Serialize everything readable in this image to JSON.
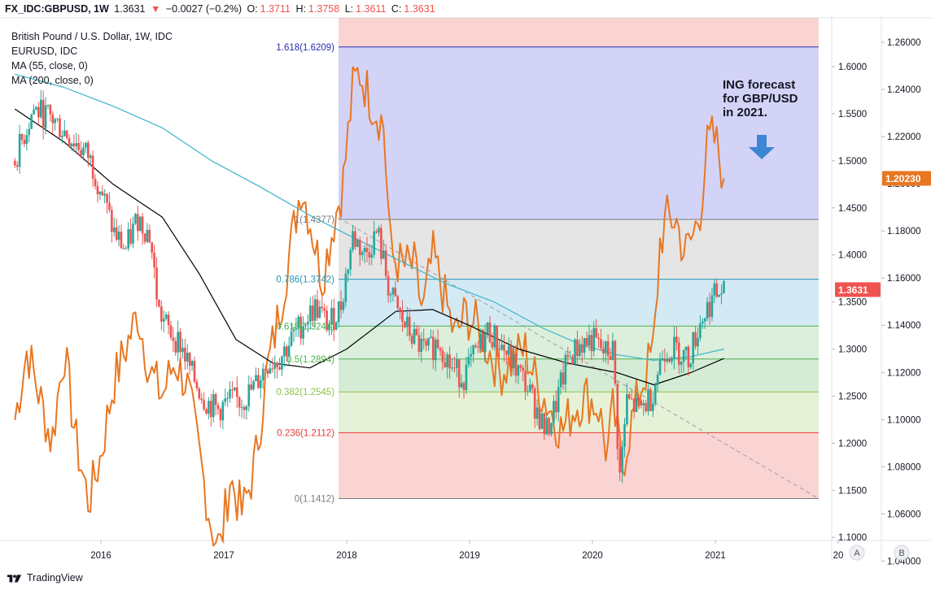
{
  "header": {
    "symbol": "FX_IDC:GBPUSD, 1W",
    "last": "1.3631",
    "change_arrow": "▼",
    "change": "−0.0027 (−0.2%)",
    "o_label": "O:",
    "o_value": "1.3711",
    "h_label": "H:",
    "h_value": "1.3758",
    "l_label": "L:",
    "l_value": "1.3611",
    "c_label": "C:",
    "c_value": "1.3631"
  },
  "legend": {
    "main": "British Pound / U.S. Dollar, 1W, IDC",
    "overlay": "EURUSD, IDC",
    "ma55": "MA (55, close, 0)",
    "ma200": "MA (200, close, 0)"
  },
  "annotation": {
    "line1": "ING forecast",
    "line2": "for GBP/USD",
    "line3": "in 2021."
  },
  "footer": {
    "brand": "TradingView"
  },
  "colors": {
    "up": "#26a69a",
    "down": "#ef5350",
    "overlay": "#e87722",
    "ma55": "#000000",
    "ma200": "#3bb7c9",
    "arrow": "#3d86d4",
    "price_badge": "#ef5350",
    "overlay_badge": "#e87722"
  },
  "icons": {
    "down_arrow": "down-arrow-icon",
    "logo": "tradingview-logo-icon"
  },
  "chart_data": {
    "type": "candlestick",
    "x_ticks": [
      "2016",
      "2017",
      "2018",
      "2019",
      "2020",
      "2021",
      "20"
    ],
    "left_axis": {
      "ticks": [
        "1.6000",
        "1.5500",
        "1.5000",
        "1.4500",
        "1.4000",
        "1.3500",
        "1.3000",
        "1.2500",
        "1.2000",
        "1.1500",
        "1.1000"
      ],
      "ylim": [
        1.1,
        1.66
      ]
    },
    "right_axis": {
      "ticks": [
        "1.26000",
        "1.24000",
        "1.22000",
        "1.20000",
        "1.18000",
        "1.16000",
        "1.14000",
        "1.12000",
        "1.10000",
        "1.08000",
        "1.06000",
        "1.04000"
      ],
      "ylim": [
        1.02,
        1.268
      ]
    },
    "last_price_badge": "1.3631",
    "overlay_badge": "1.20230",
    "scale_buttons": [
      "A",
      "B"
    ],
    "fib_levels": [
      {
        "label": "1.618(1.6209)",
        "price": 1.6209,
        "color": "#2b2bb5"
      },
      {
        "label": "1(1.4377)",
        "price": 1.4377,
        "color": "#787b86"
      },
      {
        "label": "0.786(1.3742)",
        "price": 1.3742,
        "color": "#2196b6"
      },
      {
        "label": "0.618(1.3244)",
        "price": 1.3244,
        "color": "#4caf50"
      },
      {
        "label": "0.5(1.2894)",
        "price": 1.2894,
        "color": "#4caf50"
      },
      {
        "label": "0.382(1.2545)",
        "price": 1.2545,
        "color": "#8bc34a"
      },
      {
        "label": "0.236(1.2112)",
        "price": 1.2112,
        "color": "#e53935"
      },
      {
        "label": "0(1.1412)",
        "price": 1.1412,
        "color": "#787b86"
      }
    ],
    "gbpusd_weekly_close": [
      [
        2015.3,
        1.5
      ],
      [
        2015.45,
        1.555
      ],
      [
        2015.6,
        1.545
      ],
      [
        2015.75,
        1.525
      ],
      [
        2015.9,
        1.505
      ],
      [
        2016.0,
        1.47
      ],
      [
        2016.1,
        1.425
      ],
      [
        2016.2,
        1.405
      ],
      [
        2016.3,
        1.44
      ],
      [
        2016.4,
        1.42
      ],
      [
        2016.47,
        1.34
      ],
      [
        2016.55,
        1.32
      ],
      [
        2016.65,
        1.305
      ],
      [
        2016.75,
        1.27
      ],
      [
        2016.85,
        1.245
      ],
      [
        2016.95,
        1.235
      ],
      [
        2017.05,
        1.245
      ],
      [
        2017.15,
        1.245
      ],
      [
        2017.25,
        1.26
      ],
      [
        2017.35,
        1.285
      ],
      [
        2017.45,
        1.29
      ],
      [
        2017.55,
        1.31
      ],
      [
        2017.65,
        1.33
      ],
      [
        2017.75,
        1.345
      ],
      [
        2017.85,
        1.325
      ],
      [
        2017.95,
        1.345
      ],
      [
        2018.05,
        1.42
      ],
      [
        2018.15,
        1.4
      ],
      [
        2018.25,
        1.425
      ],
      [
        2018.35,
        1.36
      ],
      [
        2018.45,
        1.33
      ],
      [
        2018.55,
        1.31
      ],
      [
        2018.65,
        1.295
      ],
      [
        2018.75,
        1.31
      ],
      [
        2018.85,
        1.28
      ],
      [
        2018.95,
        1.27
      ],
      [
        2019.05,
        1.295
      ],
      [
        2019.15,
        1.32
      ],
      [
        2019.25,
        1.305
      ],
      [
        2019.35,
        1.285
      ],
      [
        2019.45,
        1.265
      ],
      [
        2019.55,
        1.235
      ],
      [
        2019.62,
        1.21
      ],
      [
        2019.7,
        1.24
      ],
      [
        2019.8,
        1.29
      ],
      [
        2019.9,
        1.305
      ],
      [
        2020.0,
        1.31
      ],
      [
        2020.1,
        1.295
      ],
      [
        2020.17,
        1.3
      ],
      [
        2020.22,
        1.16
      ],
      [
        2020.28,
        1.245
      ],
      [
        2020.38,
        1.235
      ],
      [
        2020.48,
        1.25
      ],
      [
        2020.58,
        1.3
      ],
      [
        2020.68,
        1.3
      ],
      [
        2020.78,
        1.29
      ],
      [
        2020.88,
        1.33
      ],
      [
        2020.98,
        1.355
      ],
      [
        2021.07,
        1.3631
      ]
    ],
    "ma55": [
      [
        2015.3,
        1.555
      ],
      [
        2015.7,
        1.52
      ],
      [
        2016.1,
        1.475
      ],
      [
        2016.5,
        1.44
      ],
      [
        2016.8,
        1.38
      ],
      [
        2017.1,
        1.31
      ],
      [
        2017.4,
        1.285
      ],
      [
        2017.7,
        1.28
      ],
      [
        2018.0,
        1.3
      ],
      [
        2018.4,
        1.34
      ],
      [
        2018.7,
        1.342
      ],
      [
        2019.0,
        1.325
      ],
      [
        2019.4,
        1.3
      ],
      [
        2019.8,
        1.285
      ],
      [
        2020.2,
        1.275
      ],
      [
        2020.5,
        1.262
      ],
      [
        2020.8,
        1.275
      ],
      [
        2021.07,
        1.29
      ]
    ],
    "ma200": [
      [
        2015.3,
        1.592
      ],
      [
        2015.7,
        1.578
      ],
      [
        2016.1,
        1.558
      ],
      [
        2016.5,
        1.535
      ],
      [
        2016.9,
        1.5
      ],
      [
        2017.3,
        1.472
      ],
      [
        2017.7,
        1.442
      ],
      [
        2018.0,
        1.422
      ],
      [
        2018.4,
        1.396
      ],
      [
        2018.8,
        1.37
      ],
      [
        2019.2,
        1.35
      ],
      [
        2019.6,
        1.322
      ],
      [
        2019.9,
        1.305
      ],
      [
        2020.2,
        1.294
      ],
      [
        2020.5,
        1.288
      ],
      [
        2020.8,
        1.292
      ],
      [
        2021.07,
        1.3
      ]
    ],
    "eurusd_weekly_close": [
      [
        2015.3,
        1.1
      ],
      [
        2015.4,
        1.13
      ],
      [
        2015.5,
        1.11
      ],
      [
        2015.6,
        1.09
      ],
      [
        2015.7,
        1.13
      ],
      [
        2015.8,
        1.09
      ],
      [
        2015.9,
        1.065
      ],
      [
        2016.0,
        1.085
      ],
      [
        2016.1,
        1.115
      ],
      [
        2016.2,
        1.13
      ],
      [
        2016.3,
        1.145
      ],
      [
        2016.4,
        1.12
      ],
      [
        2016.5,
        1.11
      ],
      [
        2016.6,
        1.125
      ],
      [
        2016.7,
        1.115
      ],
      [
        2016.8,
        1.085
      ],
      [
        2016.9,
        1.055
      ],
      [
        2016.97,
        1.045
      ],
      [
        2017.05,
        1.075
      ],
      [
        2017.15,
        1.06
      ],
      [
        2017.25,
        1.08
      ],
      [
        2017.35,
        1.12
      ],
      [
        2017.45,
        1.145
      ],
      [
        2017.55,
        1.175
      ],
      [
        2017.63,
        1.2
      ],
      [
        2017.7,
        1.185
      ],
      [
        2017.8,
        1.16
      ],
      [
        2017.9,
        1.185
      ],
      [
        2017.97,
        1.2
      ],
      [
        2018.05,
        1.24
      ],
      [
        2018.1,
        1.248
      ],
      [
        2018.2,
        1.235
      ],
      [
        2018.3,
        1.225
      ],
      [
        2018.36,
        1.17
      ],
      [
        2018.45,
        1.165
      ],
      [
        2018.55,
        1.165
      ],
      [
        2018.62,
        1.145
      ],
      [
        2018.7,
        1.17
      ],
      [
        2018.78,
        1.155
      ],
      [
        2018.88,
        1.135
      ],
      [
        2018.97,
        1.145
      ],
      [
        2019.05,
        1.14
      ],
      [
        2019.15,
        1.13
      ],
      [
        2019.25,
        1.12
      ],
      [
        2019.35,
        1.125
      ],
      [
        2019.45,
        1.13
      ],
      [
        2019.55,
        1.115
      ],
      [
        2019.65,
        1.105
      ],
      [
        2019.75,
        1.095
      ],
      [
        2019.85,
        1.105
      ],
      [
        2019.95,
        1.11
      ],
      [
        2020.05,
        1.105
      ],
      [
        2020.12,
        1.085
      ],
      [
        2020.17,
        1.105
      ],
      [
        2020.24,
        1.08
      ],
      [
        2020.3,
        1.095
      ],
      [
        2020.4,
        1.115
      ],
      [
        2020.5,
        1.13
      ],
      [
        2020.55,
        1.175
      ],
      [
        2020.6,
        1.185
      ],
      [
        2020.68,
        1.185
      ],
      [
        2020.75,
        1.17
      ],
      [
        2020.82,
        1.178
      ],
      [
        2020.88,
        1.19
      ],
      [
        2020.93,
        1.215
      ],
      [
        2020.98,
        1.22
      ],
      [
        2021.02,
        1.215
      ],
      [
        2021.07,
        1.2023
      ]
    ]
  }
}
